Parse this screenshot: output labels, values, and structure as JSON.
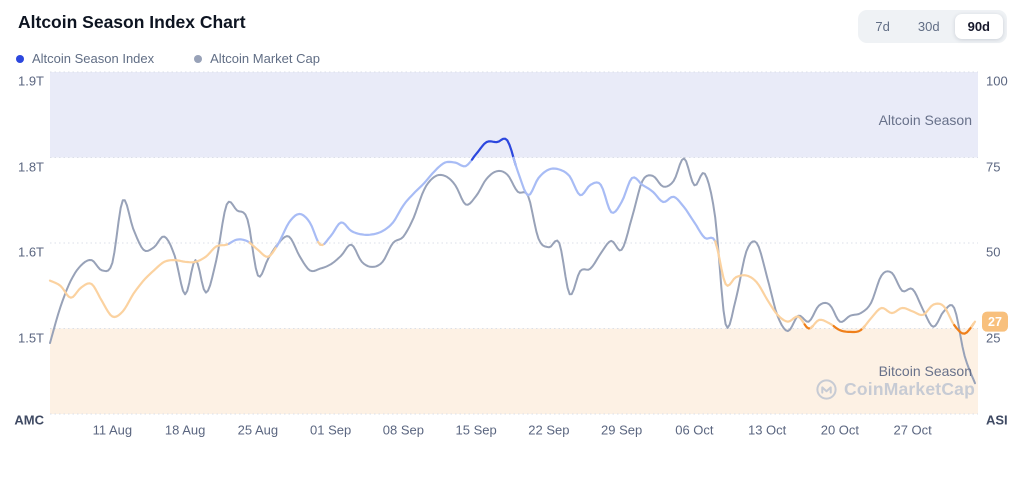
{
  "header": {
    "title": "Altcoin Season Index Chart",
    "range_options": [
      {
        "label": "7d",
        "active": false
      },
      {
        "label": "30d",
        "active": false
      },
      {
        "label": "90d",
        "active": true
      }
    ]
  },
  "legend": [
    {
      "label": "Altcoin Season Index",
      "color": "#2c47de"
    },
    {
      "label": "Altcoin Market Cap",
      "color": "#98a2b8"
    }
  ],
  "chart_data": {
    "type": "line",
    "title": "Altcoin Season Index Chart",
    "x": {
      "dates": [
        "05 Aug",
        "06 Aug",
        "07 Aug",
        "08 Aug",
        "09 Aug",
        "10 Aug",
        "11 Aug",
        "12 Aug",
        "13 Aug",
        "14 Aug",
        "15 Aug",
        "16 Aug",
        "17 Aug",
        "18 Aug",
        "19 Aug",
        "20 Aug",
        "21 Aug",
        "22 Aug",
        "23 Aug",
        "24 Aug",
        "25 Aug",
        "26 Aug",
        "27 Aug",
        "28 Aug",
        "29 Aug",
        "30 Aug",
        "31 Aug",
        "01 Sep",
        "02 Sep",
        "03 Sep",
        "04 Sep",
        "05 Sep",
        "06 Sep",
        "07 Sep",
        "08 Sep",
        "09 Sep",
        "10 Sep",
        "11 Sep",
        "12 Sep",
        "13 Sep",
        "14 Sep",
        "15 Sep",
        "16 Sep",
        "17 Sep",
        "18 Sep",
        "19 Sep",
        "20 Sep",
        "21 Sep",
        "22 Sep",
        "23 Sep",
        "24 Sep",
        "25 Sep",
        "26 Sep",
        "27 Sep",
        "28 Sep",
        "29 Sep",
        "30 Sep",
        "01 Oct",
        "02 Oct",
        "03 Oct",
        "04 Oct",
        "05 Oct",
        "06 Oct",
        "07 Oct",
        "08 Oct",
        "09 Oct",
        "10 Oct",
        "11 Oct",
        "12 Oct",
        "13 Oct",
        "14 Oct",
        "15 Oct",
        "16 Oct",
        "17 Oct",
        "18 Oct",
        "19 Oct",
        "20 Oct",
        "21 Oct",
        "22 Oct",
        "23 Oct",
        "24 Oct",
        "25 Oct",
        "26 Oct",
        "27 Oct",
        "28 Oct",
        "29 Oct",
        "30 Oct",
        "31 Oct",
        "01 Nov",
        "02 Nov"
      ],
      "tick_indices": [
        6,
        13,
        20,
        27,
        34,
        41,
        48,
        55,
        62,
        69,
        76,
        83
      ],
      "tick_labels": [
        "11 Aug",
        "18 Aug",
        "25 Aug",
        "01 Sep",
        "08 Sep",
        "15 Sep",
        "22 Sep",
        "29 Sep",
        "06 Oct",
        "13 Oct",
        "20 Oct",
        "27 Oct"
      ]
    },
    "series": [
      {
        "name": "Altcoin Season Index",
        "axis": "right",
        "values": [
          39,
          37.5,
          34,
          37,
          38,
          33,
          28.5,
          30,
          35,
          39,
          42,
          44.5,
          45,
          44.5,
          44.5,
          46,
          49,
          49.5,
          51,
          50.5,
          48,
          46,
          50,
          56,
          58.5,
          56,
          49.5,
          52,
          56,
          53.5,
          52.5,
          52.5,
          53.5,
          56,
          61,
          64.5,
          67.5,
          71,
          73.5,
          73.5,
          72.5,
          76,
          79.5,
          79.5,
          80,
          71,
          64,
          69,
          71.5,
          71.5,
          69.5,
          64,
          67,
          67,
          59,
          62,
          69,
          67,
          65,
          62,
          63.5,
          60.5,
          56,
          51.5,
          50.5,
          38,
          40,
          40.5,
          38.5,
          33.5,
          29,
          27,
          28.5,
          25,
          27.5,
          26.5,
          24.5,
          24,
          24.5,
          28,
          31,
          29.5,
          31,
          30,
          29,
          32,
          31.5,
          26,
          23.5,
          27
        ]
      },
      {
        "name": "Altcoin Market Cap",
        "axis": "left",
        "unit": "trillion USD",
        "values": [
          1.483,
          1.525,
          1.556,
          1.574,
          1.58,
          1.568,
          1.577,
          1.7,
          1.634,
          1.592,
          1.595,
          1.615,
          1.585,
          1.54,
          1.58,
          1.542,
          1.58,
          1.69,
          1.676,
          1.655,
          1.562,
          1.582,
          1.6,
          1.615,
          1.585,
          1.568,
          1.57,
          1.575,
          1.585,
          1.598,
          1.578,
          1.572,
          1.578,
          1.6,
          1.615,
          1.66,
          1.725,
          1.755,
          1.757,
          1.735,
          1.69,
          1.71,
          1.75,
          1.768,
          1.76,
          1.72,
          1.71,
          1.61,
          1.595,
          1.6,
          1.54,
          1.567,
          1.57,
          1.588,
          1.605,
          1.592,
          1.66,
          1.745,
          1.757,
          1.732,
          1.745,
          1.798,
          1.735,
          1.762,
          1.66,
          1.505,
          1.535,
          1.59,
          1.6,
          1.56,
          1.515,
          1.497,
          1.515,
          1.508,
          1.527,
          1.528,
          1.508,
          1.515,
          1.518,
          1.53,
          1.562,
          1.565,
          1.544,
          1.546,
          1.522,
          1.502,
          1.52,
          1.524,
          1.468,
          1.436
        ]
      }
    ],
    "left_axis": {
      "title": "AMC",
      "labels": [
        "1.9T",
        "1.8T",
        "1.6T",
        "1.5T"
      ]
    },
    "right_axis": {
      "title": "ASI",
      "labels": [
        "100",
        "75",
        "50",
        "25"
      ],
      "range": [
        0,
        100
      ]
    },
    "bands": [
      {
        "label": "Altcoin Season",
        "from": 75,
        "to": 100
      },
      {
        "label": "Bitcoin Season",
        "from": 0,
        "to": 25
      }
    ],
    "end_badge": {
      "value": "27"
    },
    "watermark": "CoinMarketCap",
    "grid": "dotted-horizontal",
    "legend_position": "top-left"
  },
  "colors": {
    "asi_above_75": "#2c47de",
    "asi_50_75": "#a8bcf5",
    "asi_25_50": "#fbd2a0",
    "asi_below_25": "#ef7f1a",
    "amc_line": "#98a2b8",
    "altcoin_band": "#e9ebf8",
    "bitcoin_band": "#fdf1e4",
    "badge_bg": "#f8c07d",
    "badge_text": "#ffffff",
    "grid": "#dbdfe8"
  }
}
